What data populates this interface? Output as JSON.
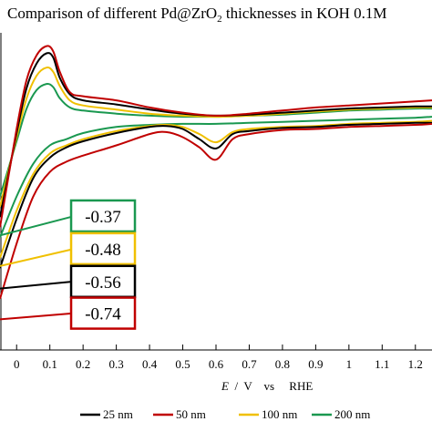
{
  "chart_data": {
    "type": "line",
    "title": "Comparison of different Pd@ZrO",
    "title_subscript": "2",
    "title_suffix": " thicknesses in KOH 0.1M",
    "xlabel_symbol": "E",
    "xlabel_rest": "  /  V    vs     RHE",
    "xlim": [
      -0.05,
      1.25
    ],
    "ylim": [
      -10,
      5.5
    ],
    "x_ticks": [
      0,
      0.1,
      0.2,
      0.3,
      0.4,
      0.5,
      0.6,
      0.7,
      0.8,
      0.9,
      1,
      1.1,
      1.2
    ],
    "x_tick_labels": [
      "0",
      "0.1",
      "0.2",
      "0.3",
      "0.4",
      "0.5",
      "0.6",
      "0.7",
      "0.8",
      "0.9",
      "1",
      "1.1",
      "1.2"
    ],
    "legend_position": "bottom",
    "series": [
      {
        "name": "25 nm",
        "color": "#000000",
        "upper": [
          [
            -0.05,
            -3.5
          ],
          [
            0,
            0.6
          ],
          [
            0.03,
            2.8
          ],
          [
            0.06,
            4.0
          ],
          [
            0.09,
            4.5
          ],
          [
            0.11,
            4.3
          ],
          [
            0.13,
            3.3
          ],
          [
            0.16,
            2.5
          ],
          [
            0.2,
            2.2
          ],
          [
            0.3,
            2.0
          ],
          [
            0.4,
            1.75
          ],
          [
            0.5,
            1.55
          ],
          [
            0.6,
            1.45
          ],
          [
            0.7,
            1.5
          ],
          [
            0.8,
            1.6
          ],
          [
            0.9,
            1.7
          ],
          [
            1.0,
            1.8
          ],
          [
            1.1,
            1.85
          ],
          [
            1.2,
            1.9
          ],
          [
            1.25,
            1.9
          ]
        ],
        "lower": [
          [
            1.25,
            1.1
          ],
          [
            1.2,
            1.1
          ],
          [
            1.1,
            1.05
          ],
          [
            1.0,
            1.0
          ],
          [
            0.9,
            0.9
          ],
          [
            0.8,
            0.85
          ],
          [
            0.7,
            0.7
          ],
          [
            0.65,
            0.55
          ],
          [
            0.6,
            -0.15
          ],
          [
            0.55,
            0.3
          ],
          [
            0.5,
            0.8
          ],
          [
            0.45,
            0.95
          ],
          [
            0.4,
            0.9
          ],
          [
            0.3,
            0.6
          ],
          [
            0.2,
            0.2
          ],
          [
            0.15,
            -0.1
          ],
          [
            0.1,
            -0.6
          ],
          [
            0.05,
            -1.6
          ],
          [
            0,
            -3.6
          ],
          [
            -0.05,
            -6.0
          ]
        ]
      },
      {
        "name": "50 nm",
        "color": "#c00000",
        "upper": [
          [
            -0.05,
            -4.0
          ],
          [
            0,
            0.8
          ],
          [
            0.03,
            3.2
          ],
          [
            0.06,
            4.4
          ],
          [
            0.09,
            4.85
          ],
          [
            0.11,
            4.6
          ],
          [
            0.13,
            3.6
          ],
          [
            0.16,
            2.6
          ],
          [
            0.2,
            2.4
          ],
          [
            0.3,
            2.2
          ],
          [
            0.4,
            1.85
          ],
          [
            0.5,
            1.6
          ],
          [
            0.6,
            1.45
          ],
          [
            0.7,
            1.55
          ],
          [
            0.8,
            1.7
          ],
          [
            0.9,
            1.85
          ],
          [
            1.0,
            1.95
          ],
          [
            1.1,
            2.05
          ],
          [
            1.2,
            2.15
          ],
          [
            1.25,
            2.2
          ]
        ],
        "lower": [
          [
            1.25,
            1.05
          ],
          [
            1.2,
            1.0
          ],
          [
            1.1,
            0.95
          ],
          [
            1.0,
            0.9
          ],
          [
            0.9,
            0.8
          ],
          [
            0.8,
            0.75
          ],
          [
            0.7,
            0.55
          ],
          [
            0.65,
            0.3
          ],
          [
            0.6,
            -0.7
          ],
          [
            0.55,
            -0.1
          ],
          [
            0.5,
            0.4
          ],
          [
            0.45,
            0.65
          ],
          [
            0.4,
            0.55
          ],
          [
            0.3,
            0.0
          ],
          [
            0.2,
            -0.5
          ],
          [
            0.15,
            -0.8
          ],
          [
            0.1,
            -1.3
          ],
          [
            0.05,
            -2.5
          ],
          [
            0,
            -4.8
          ],
          [
            -0.05,
            -7.5
          ]
        ]
      },
      {
        "name": "100 nm",
        "color": "#f0c000",
        "upper": [
          [
            -0.05,
            -3.0
          ],
          [
            0,
            0.4
          ],
          [
            0.03,
            2.3
          ],
          [
            0.06,
            3.4
          ],
          [
            0.09,
            3.8
          ],
          [
            0.11,
            3.6
          ],
          [
            0.13,
            2.9
          ],
          [
            0.16,
            2.2
          ],
          [
            0.2,
            1.95
          ],
          [
            0.3,
            1.75
          ],
          [
            0.4,
            1.55
          ],
          [
            0.5,
            1.45
          ],
          [
            0.6,
            1.4
          ],
          [
            0.7,
            1.45
          ],
          [
            0.8,
            1.55
          ],
          [
            0.9,
            1.65
          ],
          [
            1.0,
            1.75
          ],
          [
            1.1,
            1.8
          ],
          [
            1.2,
            1.85
          ],
          [
            1.25,
            1.85
          ]
        ],
        "lower": [
          [
            1.25,
            1.2
          ],
          [
            1.2,
            1.15
          ],
          [
            1.1,
            1.1
          ],
          [
            1.0,
            1.05
          ],
          [
            0.9,
            0.95
          ],
          [
            0.8,
            0.9
          ],
          [
            0.7,
            0.8
          ],
          [
            0.65,
            0.65
          ],
          [
            0.6,
            0.15
          ],
          [
            0.55,
            0.55
          ],
          [
            0.5,
            0.9
          ],
          [
            0.45,
            1.0
          ],
          [
            0.4,
            0.95
          ],
          [
            0.3,
            0.7
          ],
          [
            0.2,
            0.3
          ],
          [
            0.15,
            0.0
          ],
          [
            0.1,
            -0.4
          ],
          [
            0.05,
            -1.4
          ],
          [
            0,
            -3.2
          ],
          [
            -0.05,
            -5.5
          ]
        ]
      },
      {
        "name": "200 nm",
        "color": "#1a9850",
        "upper": [
          [
            -0.05,
            -2.5
          ],
          [
            0,
            0.2
          ],
          [
            0.03,
            1.8
          ],
          [
            0.06,
            2.7
          ],
          [
            0.09,
            3.0
          ],
          [
            0.11,
            2.85
          ],
          [
            0.13,
            2.3
          ],
          [
            0.16,
            1.85
          ],
          [
            0.2,
            1.7
          ],
          [
            0.3,
            1.55
          ],
          [
            0.4,
            1.45
          ],
          [
            0.5,
            1.4
          ],
          [
            0.6,
            1.4
          ],
          [
            0.7,
            1.45
          ],
          [
            0.8,
            1.5
          ],
          [
            0.9,
            1.6
          ],
          [
            1.0,
            1.7
          ],
          [
            1.1,
            1.75
          ],
          [
            1.2,
            1.8
          ],
          [
            1.25,
            1.8
          ]
        ],
        "lower": [
          [
            1.25,
            1.4
          ],
          [
            1.2,
            1.35
          ],
          [
            1.1,
            1.3
          ],
          [
            1.0,
            1.25
          ],
          [
            0.9,
            1.2
          ],
          [
            0.8,
            1.15
          ],
          [
            0.7,
            1.1
          ],
          [
            0.6,
            1.05
          ],
          [
            0.5,
            1.05
          ],
          [
            0.4,
            1.0
          ],
          [
            0.3,
            0.9
          ],
          [
            0.2,
            0.6
          ],
          [
            0.15,
            0.3
          ],
          [
            0.1,
            0.0
          ],
          [
            0.05,
            -0.9
          ],
          [
            0,
            -2.5
          ],
          [
            -0.05,
            -4.5
          ]
        ]
      }
    ],
    "annotations": [
      {
        "text": "-0.37",
        "color": "#1a9850",
        "leader_from": [
          -0.05,
          -4.4
        ],
        "leader_to": [
          0.175,
          -3.45
        ],
        "box_at": [
          0.26,
          -3.45
        ]
      },
      {
        "text": "-0.48",
        "color": "#f0c000",
        "leader_from": [
          -0.05,
          -5.9
        ],
        "leader_to": [
          0.175,
          -5.05
        ],
        "box_at": [
          0.26,
          -5.05
        ]
      },
      {
        "text": "-0.56",
        "color": "#000000",
        "leader_from": [
          -0.05,
          -7.0
        ],
        "leader_to": [
          0.175,
          -6.65
        ],
        "box_at": [
          0.26,
          -6.65
        ]
      },
      {
        "text": "-0.74",
        "color": "#c00000",
        "leader_from": [
          -0.05,
          -8.5
        ],
        "leader_to": [
          0.175,
          -8.2
        ],
        "box_at": [
          0.26,
          -8.2
        ]
      }
    ]
  }
}
